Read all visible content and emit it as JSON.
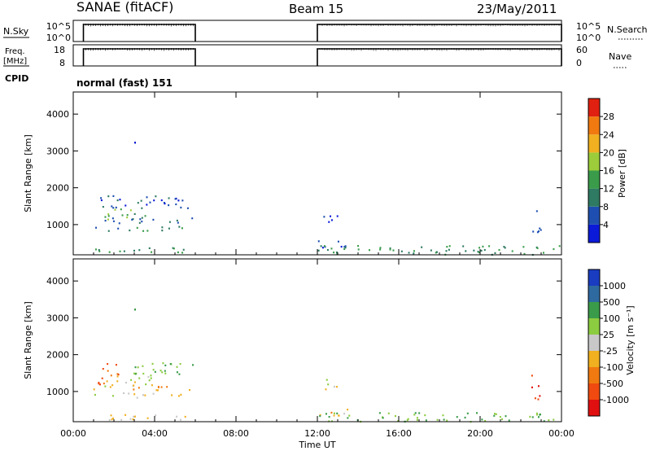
{
  "header": {
    "station": "SANAE (fitACF)",
    "beam": "Beam 15",
    "date": "23/May/2011"
  },
  "strips": {
    "nsky": {
      "label": "N.Sky",
      "ticks": [
        "10^5",
        "10^0"
      ]
    },
    "nsearch": {
      "label": "N.Search",
      "ticks": [
        "10^5",
        "10^0"
      ]
    },
    "freq": {
      "label_line1": "Freq.",
      "label_line2": "[MHz]",
      "ticks": [
        "18",
        "8"
      ]
    },
    "nave": {
      "label": "Nave",
      "ticks": [
        "60",
        "0"
      ]
    },
    "cpid": {
      "label": "CPID",
      "value": "normal (fast) 151"
    }
  },
  "colors": {
    "power": [
      "#0b1ad8",
      "#1e4fb0",
      "#2e7a62",
      "#3a9c4a",
      "#9ccc3a",
      "#f0b020",
      "#f07a10",
      "#e02010"
    ],
    "velocity": [
      "#e01010",
      "#f04a10",
      "#f07a10",
      "#f0b020",
      "#c8c8c8",
      "#8ccc40",
      "#3a9c4a",
      "#2e6aa0",
      "#1a3cc0"
    ],
    "power_ticks": [
      "28",
      "24",
      "20",
      "16",
      "12",
      "8",
      "4"
    ],
    "velocity_ticks": [
      "1000",
      "500",
      "100",
      "25",
      "-25",
      "-100",
      "-500",
      "-1000"
    ]
  },
  "axes": {
    "x_label": "Time UT",
    "x_ticks": [
      "00:00",
      "04:00",
      "08:00",
      "12:00",
      "16:00",
      "20:00",
      "00:00"
    ],
    "y_label": "Slant Range [km]",
    "y_ticks": [
      "4000",
      "3000",
      "2000",
      "1000"
    ],
    "power_label": "Power [dB]",
    "velocity_label": "Velocity [m s⁻¹]"
  },
  "chart_data": {
    "type": "heatmap",
    "title": "SANAE (fitACF)   Beam 15   23/May/2011",
    "xlabel": "Time UT",
    "ylabel": "Slant Range [km]",
    "xlim": [
      0,
      24
    ],
    "ylim": [
      180,
      4600
    ],
    "sky_noise_on": [
      [
        0.5,
        6
      ],
      [
        12,
        24
      ]
    ],
    "panels": [
      {
        "name": "Power [dB]",
        "clim": [
          0,
          32
        ],
        "scatter_clusters": [
          {
            "t": [
              1.2,
              6.0
            ],
            "r": [
              1450,
              1800
            ],
            "value": 6
          },
          {
            "t": [
              1.5,
              3.8
            ],
            "r": [
              1150,
              1450
            ],
            "value": 14
          },
          {
            "t": [
              0.8,
              6.0
            ],
            "r": [
              1050,
              1200
            ],
            "value": 8
          },
          {
            "t": [
              1.0,
              5.5
            ],
            "r": [
              850,
              1000
            ],
            "value": 10
          },
          {
            "t": [
              0.5,
              6.0
            ],
            "r": [
              250,
              400
            ],
            "value": 12
          },
          {
            "t": [
              12.0,
              13.5
            ],
            "r": [
              350,
              600
            ],
            "value": 4
          },
          {
            "t": [
              12.2,
              13.0
            ],
            "r": [
              1000,
              1350
            ],
            "value": 4
          },
          {
            "t": [
              12.0,
              24.0
            ],
            "r": [
              200,
              450
            ],
            "value": 12
          },
          {
            "t": [
              22.5,
              23.0
            ],
            "r": [
              800,
              1500
            ],
            "value": 6
          },
          {
            "t": [
              3.0,
              3.0
            ],
            "r": [
              3250,
              3250
            ],
            "value": 4
          }
        ]
      },
      {
        "name": "Velocity [m s⁻¹]",
        "clim": [
          -1000,
          1000
        ],
        "scatter_clusters": [
          {
            "t": [
              1.2,
              2.3
            ],
            "r": [
              1200,
              1800
            ],
            "value": -500
          },
          {
            "t": [
              2.3,
              6.0
            ],
            "r": [
              1450,
              1800
            ],
            "value": 100
          },
          {
            "t": [
              1.5,
              3.8
            ],
            "r": [
              1150,
              1450
            ],
            "value": 0
          },
          {
            "t": [
              0.8,
              6.0
            ],
            "r": [
              1050,
              1200
            ],
            "value": -100
          },
          {
            "t": [
              1.0,
              5.5
            ],
            "r": [
              850,
              1000
            ],
            "value": 0
          },
          {
            "t": [
              0.5,
              6.0
            ],
            "r": [
              250,
              400
            ],
            "value": -50
          },
          {
            "t": [
              12.0,
              13.5
            ],
            "r": [
              350,
              600
            ],
            "value": -50
          },
          {
            "t": [
              12.2,
              13.0
            ],
            "r": [
              1000,
              1350
            ],
            "value": 0
          },
          {
            "t": [
              12.0,
              24.0
            ],
            "r": [
              200,
              450
            ],
            "value": 100
          },
          {
            "t": [
              22.5,
              23.0
            ],
            "r": [
              800,
              1500
            ],
            "value": -1000
          },
          {
            "t": [
              3.0,
              3.0
            ],
            "r": [
              3250,
              3250
            ],
            "value": 500
          }
        ]
      }
    ]
  }
}
